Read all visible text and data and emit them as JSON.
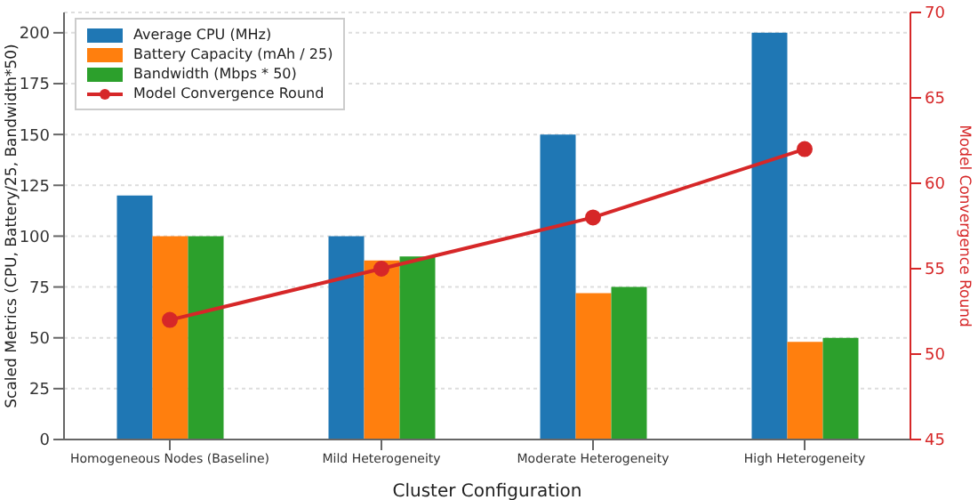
{
  "chart_data": {
    "type": "bar",
    "xlabel": "Cluster Configuration",
    "ylabel": "Scaled Metrics (CPU, Battery/25, Bandwidth*50)",
    "y2label": "Model Convergence Round",
    "categories": [
      "Homogeneous Nodes (Baseline)",
      "Mild Heterogeneity",
      "Moderate Heterogeneity",
      "High Heterogeneity"
    ],
    "series": [
      {
        "name": "Average CPU (MHz)",
        "color": "#1f77b4",
        "values": [
          120,
          100,
          150,
          200
        ]
      },
      {
        "name": "Battery Capacity (mAh / 25)",
        "color": "#ff7f0e",
        "values": [
          100,
          88,
          72,
          48
        ]
      },
      {
        "name": "Bandwidth (Mbps * 50)",
        "color": "#2ca02c",
        "values": [
          100,
          90,
          75,
          50
        ]
      },
      {
        "name": "Model Convergence Round",
        "type": "line",
        "axis": "y2",
        "color": "#d62728",
        "values": [
          52,
          55,
          58,
          62
        ],
        "marker": "circle"
      }
    ],
    "ylim": [
      0,
      210
    ],
    "yticks": [
      0,
      25,
      50,
      75,
      100,
      125,
      150,
      175,
      200
    ],
    "y2lim": [
      45,
      70
    ],
    "y2ticks": [
      45,
      50,
      55,
      60,
      65,
      70
    ],
    "grid": "y",
    "legend": "top left"
  }
}
